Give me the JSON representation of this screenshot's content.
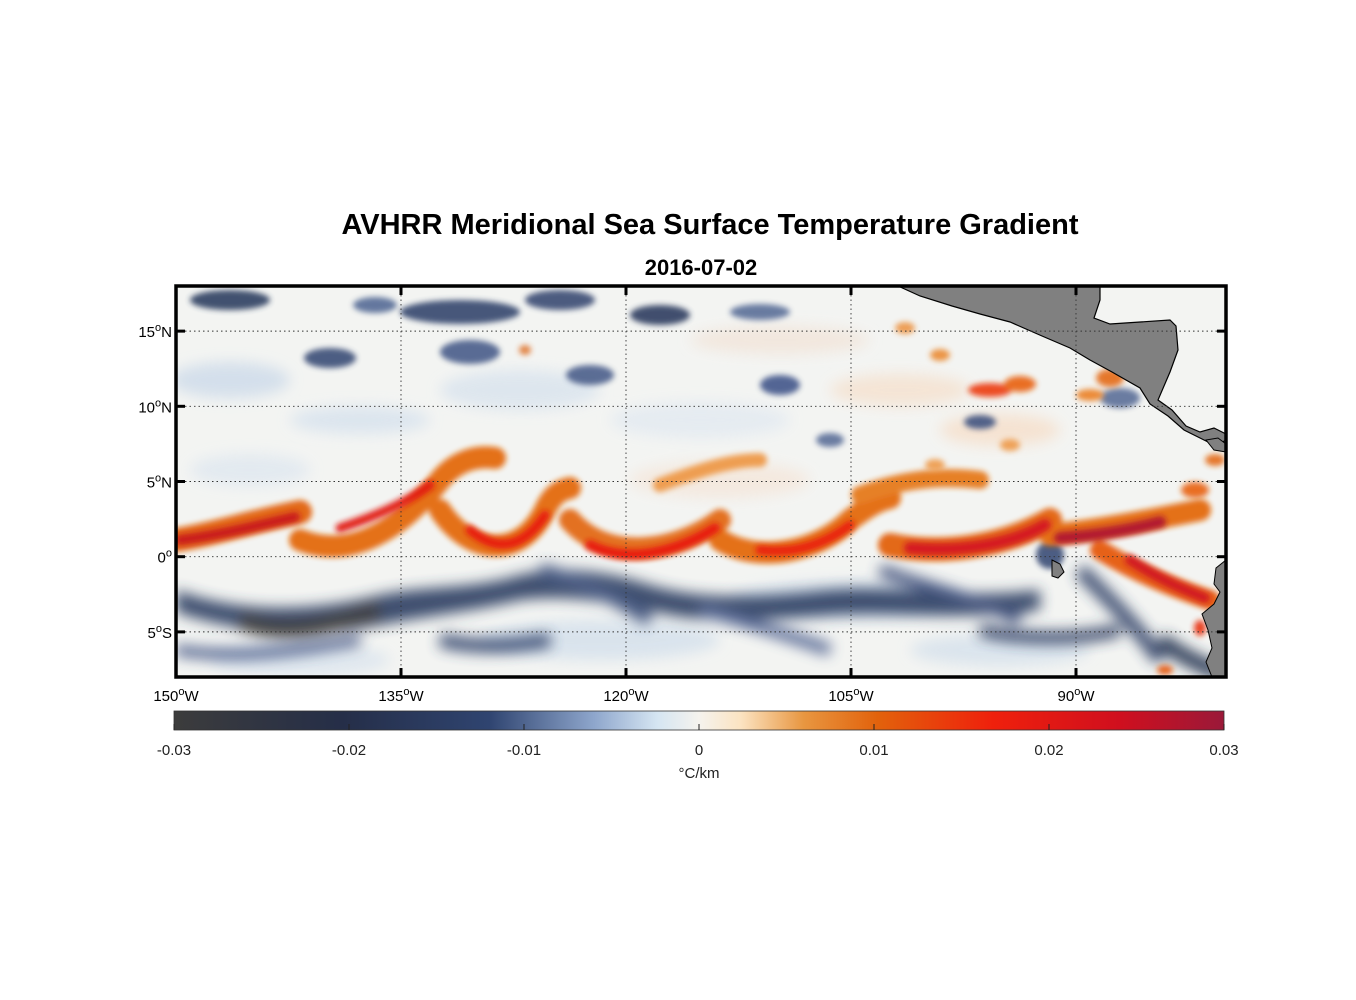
{
  "chart_data": {
    "type": "heatmap",
    "title": "AVHRR Meridional Sea Surface Temperature Gradient",
    "subtitle": "2016-07-02",
    "map": {
      "lon_range": [
        -150,
        -80
      ],
      "lat_range": [
        -8,
        18
      ],
      "x_ticks": [
        {
          "value": -150,
          "deg": "150",
          "dir": "W"
        },
        {
          "value": -135,
          "deg": "135",
          "dir": "W"
        },
        {
          "value": -120,
          "deg": "120",
          "dir": "W"
        },
        {
          "value": -105,
          "deg": "105",
          "dir": "W"
        },
        {
          "value": -90,
          "deg": "90",
          "dir": "W"
        }
      ],
      "y_ticks": [
        {
          "value": 15,
          "deg": "15",
          "dir": "N"
        },
        {
          "value": 10,
          "deg": "10",
          "dir": "N"
        },
        {
          "value": 5,
          "deg": "5",
          "dir": "N"
        },
        {
          "value": 0,
          "deg": "0",
          "dir": ""
        },
        {
          "value": -5,
          "deg": "5",
          "dir": "S"
        }
      ],
      "grid": "dotted",
      "degree_symbol": "o",
      "land_color": "#808080",
      "features": {
        "tropical_instability_wave_crests_lon": [
          -146,
          -141,
          -132,
          -124,
          -118,
          -110,
          -101,
          -93,
          -86
        ],
        "front_mean_lat": 1.5,
        "cold_tongue_lat": -2.5
      }
    },
    "colorbar": {
      "range": [
        -0.03,
        0.03
      ],
      "ticks": [
        {
          "value": -0.03,
          "label": "-0.03"
        },
        {
          "value": -0.02,
          "label": "-0.02"
        },
        {
          "value": -0.01,
          "label": "-0.01"
        },
        {
          "value": 0,
          "label": "0"
        },
        {
          "value": 0.01,
          "label": "0.01"
        },
        {
          "value": 0.02,
          "label": "0.02"
        },
        {
          "value": 0.03,
          "label": "0.03"
        }
      ],
      "label": "°C/km",
      "colors": [
        "#3c3c3c",
        "#1f2f55",
        "#4a5f8c",
        "#cfe0ef",
        "#f6f4ee",
        "#f7dcbc",
        "#e37810",
        "#ec1a0d",
        "#9c1838"
      ]
    }
  }
}
